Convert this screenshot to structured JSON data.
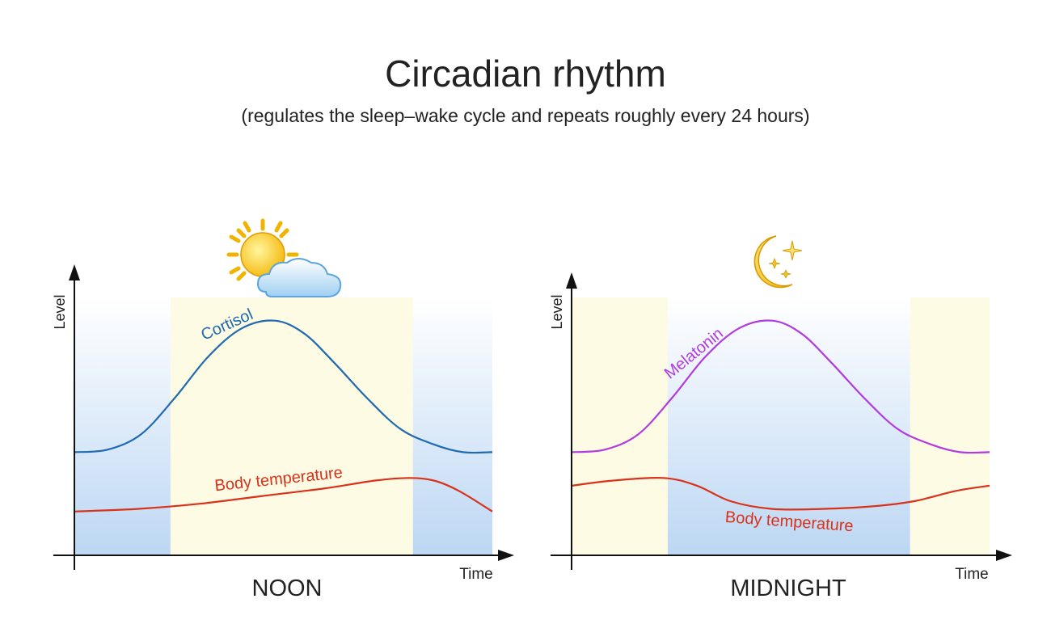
{
  "header": {
    "title": "Circadian rhythm",
    "subtitle": "(regulates the sleep–wake cycle and repeats roughly every 24 hours)"
  },
  "colors": {
    "night_top": "#ffffff",
    "night_bottom": "#bcd7f3",
    "day_fill": "#fdfbe3",
    "axis": "#111111",
    "cortisol": "#1f6ab0",
    "melatonin": "#b23be0",
    "body_temperature": "#d9321c"
  },
  "panels": [
    {
      "id": "noon",
      "caption": "NOON",
      "icon": "sun-cloud-icon",
      "y_axis_label": "Level",
      "x_axis_label": "Time",
      "bands": [
        {
          "type": "night",
          "from": 0.0,
          "to": 0.23
        },
        {
          "type": "day",
          "from": 0.23,
          "to": 0.81
        },
        {
          "type": "night",
          "from": 0.81,
          "to": 1.0
        }
      ],
      "series": [
        {
          "name": "Cortisol",
          "color_key": "cortisol",
          "label_at": 0.37,
          "points": [
            [
              0,
              0.4
            ],
            [
              0.08,
              0.41
            ],
            [
              0.16,
              0.47
            ],
            [
              0.24,
              0.61
            ],
            [
              0.32,
              0.77
            ],
            [
              0.4,
              0.88
            ],
            [
              0.48,
              0.91
            ],
            [
              0.55,
              0.86
            ],
            [
              0.62,
              0.75
            ],
            [
              0.7,
              0.61
            ],
            [
              0.78,
              0.49
            ],
            [
              0.86,
              0.43
            ],
            [
              0.93,
              0.4
            ],
            [
              1.0,
              0.4
            ]
          ]
        },
        {
          "name": "Body temperature",
          "color_key": "body_temperature",
          "label_at": 0.49,
          "points": [
            [
              0,
              0.17
            ],
            [
              0.15,
              0.18
            ],
            [
              0.3,
              0.2
            ],
            [
              0.45,
              0.23
            ],
            [
              0.6,
              0.26
            ],
            [
              0.72,
              0.29
            ],
            [
              0.8,
              0.3
            ],
            [
              0.86,
              0.29
            ],
            [
              0.92,
              0.25
            ],
            [
              1.0,
              0.17
            ]
          ]
        }
      ]
    },
    {
      "id": "midnight",
      "caption": "MIDNIGHT",
      "icon": "moon-stars-icon",
      "y_axis_label": "Level",
      "x_axis_label": "Time",
      "bands": [
        {
          "type": "day",
          "from": 0.0,
          "to": 0.23
        },
        {
          "type": "night",
          "from": 0.23,
          "to": 0.81
        },
        {
          "type": "day",
          "from": 0.81,
          "to": 1.0
        }
      ],
      "series": [
        {
          "name": "Melatonin",
          "color_key": "melatonin",
          "label_at": 0.3,
          "points": [
            [
              0,
              0.4
            ],
            [
              0.08,
              0.41
            ],
            [
              0.16,
              0.47
            ],
            [
              0.24,
              0.61
            ],
            [
              0.32,
              0.77
            ],
            [
              0.4,
              0.88
            ],
            [
              0.48,
              0.91
            ],
            [
              0.55,
              0.86
            ],
            [
              0.62,
              0.75
            ],
            [
              0.7,
              0.61
            ],
            [
              0.78,
              0.49
            ],
            [
              0.86,
              0.43
            ],
            [
              0.93,
              0.4
            ],
            [
              1.0,
              0.4
            ]
          ]
        },
        {
          "name": "Body temperature",
          "color_key": "body_temperature",
          "label_at": 0.52,
          "points": [
            [
              0,
              0.27
            ],
            [
              0.1,
              0.29
            ],
            [
              0.22,
              0.3
            ],
            [
              0.3,
              0.27
            ],
            [
              0.38,
              0.21
            ],
            [
              0.48,
              0.18
            ],
            [
              0.6,
              0.18
            ],
            [
              0.72,
              0.19
            ],
            [
              0.82,
              0.21
            ],
            [
              0.92,
              0.25
            ],
            [
              1.0,
              0.27
            ]
          ]
        }
      ]
    }
  ]
}
